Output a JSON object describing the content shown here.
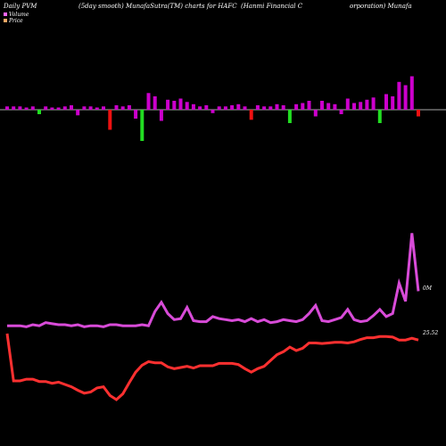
{
  "header": {
    "left": "Daily PVM",
    "mid": "(5day smooth) MunafaSutra(TM) charts for HAFC",
    "right": "(Hanmi  Financial C",
    "far_right": "orporation) Munafa"
  },
  "legend": {
    "volume": "Volume",
    "price": "Price"
  },
  "colors": {
    "background": "#000000",
    "volume_line": "#d84bd8",
    "price_line": "#ff3030",
    "bar_up": "#cc00cc",
    "bar_down_green": "#22dd22",
    "bar_down_red": "#ee1111",
    "baseline": "#aaaaaa",
    "legend_volume": "#ff66ff",
    "legend_price": "#ffaa66"
  },
  "labels": {
    "volume_end": "0M",
    "price_end": "25.52"
  },
  "chart_data": {
    "type": "line",
    "x_count": 65,
    "series": [
      {
        "name": "Volume",
        "values": [
          0.06,
          0.06,
          0.06,
          0.05,
          0.07,
          0.06,
          0.09,
          0.08,
          0.07,
          0.07,
          0.06,
          0.07,
          0.05,
          0.06,
          0.06,
          0.05,
          0.07,
          0.07,
          0.06,
          0.06,
          0.06,
          0.07,
          0.06,
          0.2,
          0.29,
          0.18,
          0.12,
          0.13,
          0.24,
          0.11,
          0.1,
          0.1,
          0.15,
          0.13,
          0.12,
          0.11,
          0.12,
          0.1,
          0.13,
          0.1,
          0.12,
          0.09,
          0.1,
          0.12,
          0.11,
          0.1,
          0.12,
          0.18,
          0.26,
          0.11,
          0.1,
          0.12,
          0.14,
          0.22,
          0.12,
          0.1,
          0.11,
          0.16,
          0.22,
          0.15,
          0.18,
          0.48,
          0.3,
          0.97,
          0.4
        ]
      },
      {
        "name": "Price",
        "values": [
          25.1,
          17.0,
          17.0,
          17.3,
          17.3,
          16.9,
          16.9,
          16.6,
          16.8,
          16.4,
          16.0,
          15.4,
          14.9,
          15.1,
          15.8,
          16.0,
          14.5,
          13.8,
          14.8,
          16.7,
          18.5,
          19.7,
          20.3,
          20.1,
          20.1,
          19.4,
          19.1,
          19.3,
          19.5,
          19.2,
          19.6,
          19.6,
          19.6,
          20.0,
          20.0,
          20.0,
          19.8,
          19.1,
          18.5,
          19.1,
          19.5,
          20.5,
          21.5,
          22.0,
          22.8,
          22.2,
          22.6,
          23.5,
          23.5,
          23.4,
          23.5,
          23.6,
          23.6,
          23.5,
          23.7,
          24.1,
          24.4,
          24.4,
          24.6,
          24.6,
          24.5,
          24.0,
          24.0,
          24.3,
          24.0
        ]
      }
    ],
    "pvm_bars": [
      {
        "v": 3,
        "c": "up"
      },
      {
        "v": 3,
        "c": "up"
      },
      {
        "v": 3,
        "c": "up"
      },
      {
        "v": 2,
        "c": "up"
      },
      {
        "v": 3,
        "c": "up"
      },
      {
        "v": -4,
        "c": "green"
      },
      {
        "v": 3,
        "c": "up"
      },
      {
        "v": 2,
        "c": "up"
      },
      {
        "v": 2,
        "c": "up"
      },
      {
        "v": 3,
        "c": "up"
      },
      {
        "v": 4,
        "c": "up"
      },
      {
        "v": -5,
        "c": "up"
      },
      {
        "v": 3,
        "c": "up"
      },
      {
        "v": 3,
        "c": "up"
      },
      {
        "v": 2,
        "c": "up"
      },
      {
        "v": 3,
        "c": "up"
      },
      {
        "v": -18,
        "c": "red"
      },
      {
        "v": 4,
        "c": "up"
      },
      {
        "v": 3,
        "c": "up"
      },
      {
        "v": 4,
        "c": "up"
      },
      {
        "v": -8,
        "c": "up"
      },
      {
        "v": -28,
        "c": "green"
      },
      {
        "v": 15,
        "c": "up"
      },
      {
        "v": 12,
        "c": "up"
      },
      {
        "v": -10,
        "c": "up"
      },
      {
        "v": 9,
        "c": "up"
      },
      {
        "v": 8,
        "c": "up"
      },
      {
        "v": 10,
        "c": "up"
      },
      {
        "v": 7,
        "c": "up"
      },
      {
        "v": 5,
        "c": "up"
      },
      {
        "v": 3,
        "c": "up"
      },
      {
        "v": 4,
        "c": "up"
      },
      {
        "v": -3,
        "c": "up"
      },
      {
        "v": 3,
        "c": "up"
      },
      {
        "v": 3,
        "c": "up"
      },
      {
        "v": 4,
        "c": "up"
      },
      {
        "v": 5,
        "c": "up"
      },
      {
        "v": 3,
        "c": "up"
      },
      {
        "v": -9,
        "c": "red"
      },
      {
        "v": 4,
        "c": "up"
      },
      {
        "v": 3,
        "c": "up"
      },
      {
        "v": 3,
        "c": "up"
      },
      {
        "v": 5,
        "c": "up"
      },
      {
        "v": 4,
        "c": "up"
      },
      {
        "v": -12,
        "c": "green"
      },
      {
        "v": 5,
        "c": "up"
      },
      {
        "v": 6,
        "c": "up"
      },
      {
        "v": 8,
        "c": "up"
      },
      {
        "v": -6,
        "c": "up"
      },
      {
        "v": 8,
        "c": "up"
      },
      {
        "v": 6,
        "c": "up"
      },
      {
        "v": 5,
        "c": "up"
      },
      {
        "v": -4,
        "c": "up"
      },
      {
        "v": 10,
        "c": "up"
      },
      {
        "v": 6,
        "c": "up"
      },
      {
        "v": 7,
        "c": "up"
      },
      {
        "v": 9,
        "c": "up"
      },
      {
        "v": 11,
        "c": "up"
      },
      {
        "v": -12,
        "c": "green"
      },
      {
        "v": 14,
        "c": "up"
      },
      {
        "v": 12,
        "c": "up"
      },
      {
        "v": 25,
        "c": "up"
      },
      {
        "v": 22,
        "c": "up"
      },
      {
        "v": 30,
        "c": "up"
      },
      {
        "v": -6,
        "c": "red"
      }
    ]
  }
}
